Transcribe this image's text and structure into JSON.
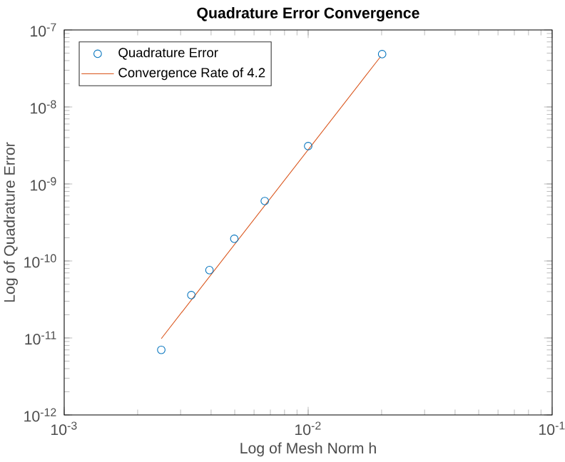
{
  "chart_data": {
    "type": "scatter",
    "title": "Quadrature Error Convergence",
    "xlabel": "Log of Mesh Norm h",
    "ylabel": "Log of Quadrature Error",
    "log": "xy",
    "legend": "top left",
    "grid": false,
    "xlim": [
      0.001,
      0.1
    ],
    "ylim": [
      1e-12,
      1e-07
    ],
    "xticks": [
      {
        "value": 0.001,
        "label": "10$^{-3}$"
      },
      {
        "value": 0.01,
        "label": "10$^{-2}$"
      },
      {
        "value": 0.1,
        "label": "10$^{-1}$"
      }
    ],
    "yticks": [
      {
        "value": 1e-12,
        "label": "10$^{-12}$"
      },
      {
        "value": 1e-11,
        "label": "10$^{-11}$"
      },
      {
        "value": 1e-10,
        "label": "10$^{-10}$"
      },
      {
        "value": 1e-09,
        "label": "10$^{-9}$"
      },
      {
        "value": 1e-08,
        "label": "10$^{-8}$"
      },
      {
        "value": 1e-07,
        "label": "10$^{-7}$"
      }
    ],
    "series": [
      {
        "name": "Quadrature Error",
        "marker": "circle",
        "color": "#0072bd",
        "x": [
          0.0025,
          0.00332,
          0.00394,
          0.00498,
          0.00664,
          0.01,
          0.0201
        ],
        "values": [
          7e-12,
          3.6e-11,
          7.6e-11,
          1.94e-10,
          6e-10,
          3.1e-09,
          4.85e-08
        ]
      },
      {
        "name": "Convergence Rate of 4.2",
        "type": "line",
        "marker": "none",
        "line_style": "solid",
        "color": "#d95319",
        "x": [
          0.0025,
          0.0198
        ],
        "values": [
          9.8e-12,
          4.5e-08
        ]
      }
    ]
  }
}
